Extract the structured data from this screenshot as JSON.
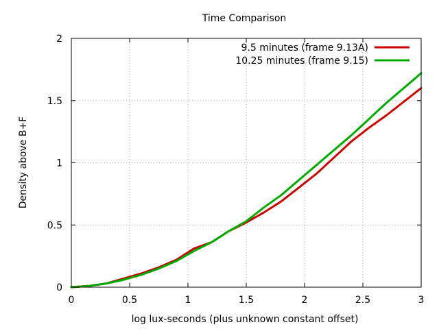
{
  "chart_data": {
    "type": "line",
    "title": "Time Comparison",
    "xlabel": "log lux-seconds (plus unknown constant offset)",
    "ylabel": "Density above B+F",
    "xlim": [
      0,
      3
    ],
    "ylim": [
      0,
      2
    ],
    "xticks": [
      "0",
      "0.5",
      "1",
      "1.5",
      "2",
      "2.5",
      "3"
    ],
    "yticks": [
      "0",
      "0.5",
      "1",
      "1.5",
      "2"
    ],
    "grid": true,
    "legend_position": "top-right",
    "series": [
      {
        "name": "9.5 minutes (frame 9.13A)",
        "color": "#cc0000",
        "x": [
          0,
          0.15,
          0.3,
          0.45,
          0.6,
          0.75,
          0.9,
          1.05,
          1.2,
          1.35,
          1.5,
          1.65,
          1.8,
          1.95,
          2.1,
          2.25,
          2.4,
          2.55,
          2.7,
          2.85,
          3.0
        ],
        "y": [
          0,
          0.01,
          0.03,
          0.07,
          0.11,
          0.16,
          0.22,
          0.31,
          0.36,
          0.45,
          0.52,
          0.6,
          0.69,
          0.8,
          0.91,
          1.04,
          1.17,
          1.28,
          1.38,
          1.49,
          1.6
        ]
      },
      {
        "name": "10.25 minutes (frame 9.15)",
        "color": "#00aa00",
        "x": [
          0,
          0.15,
          0.3,
          0.45,
          0.6,
          0.75,
          0.9,
          1.05,
          1.2,
          1.35,
          1.5,
          1.65,
          1.8,
          1.95,
          2.1,
          2.25,
          2.4,
          2.55,
          2.7,
          2.85,
          3.0
        ],
        "y": [
          0,
          0.01,
          0.03,
          0.06,
          0.1,
          0.15,
          0.21,
          0.29,
          0.36,
          0.45,
          0.53,
          0.64,
          0.74,
          0.86,
          0.98,
          1.1,
          1.22,
          1.35,
          1.48,
          1.6,
          1.72
        ]
      }
    ]
  }
}
